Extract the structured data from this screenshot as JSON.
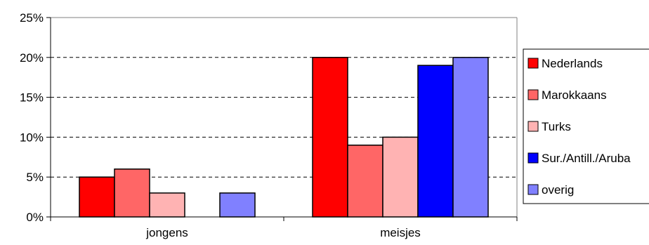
{
  "chart_data": {
    "type": "bar",
    "categories": [
      "jongens",
      "meisjes"
    ],
    "series": [
      {
        "name": "Nederlands",
        "color": "#ff0000",
        "values": [
          5,
          20
        ]
      },
      {
        "name": "Marokkaans",
        "color": "#ff6666",
        "values": [
          6,
          9
        ]
      },
      {
        "name": "Turks",
        "color": "#ffb3b3",
        "values": [
          3,
          10
        ]
      },
      {
        "name": "Sur./Antill./Aruba",
        "color": "#0000ff",
        "values": [
          0,
          19
        ]
      },
      {
        "name": "overig",
        "color": "#8080ff",
        "values": [
          3,
          20
        ]
      }
    ],
    "y_ticks": [
      "0%",
      "5%",
      "10%",
      "15%",
      "20%",
      "25%"
    ],
    "ylim": [
      0,
      25
    ],
    "grid": "horizontal-dashed",
    "legend_position": "right"
  }
}
